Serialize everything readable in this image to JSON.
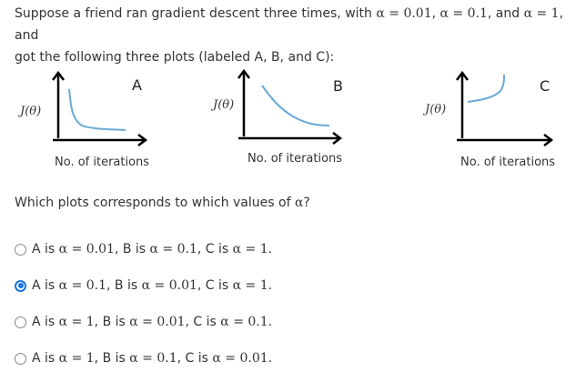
{
  "question": {
    "line1_pre": "Suppose a friend ran gradient descent three times, with ",
    "line1_a1": "α = 0.01",
    "line1_sep1": ", ",
    "line1_a2": "α = 0.1",
    "line1_sep2": ", and ",
    "line1_a3": "α = 1",
    "line1_post": ", and",
    "line2": "got the following three plots (labeled A, B, and C):"
  },
  "plots": [
    {
      "letter": "A",
      "ylabel": "J(θ)",
      "xlabel": "No. of iterations",
      "curve": "fast-decrease"
    },
    {
      "letter": "B",
      "ylabel": "J(θ)",
      "xlabel": "No. of iterations",
      "curve": "slow-decrease"
    },
    {
      "letter": "C",
      "ylabel": "J(θ)",
      "xlabel": "No. of iterations",
      "curve": "diverge"
    }
  ],
  "prompt": {
    "pre": "Which plots corresponds to which values of ",
    "alpha": "α",
    "post": "?"
  },
  "options": [
    {
      "p1": "A is ",
      "v1": "α = 0.01",
      "p2": ", B is ",
      "v2": "α = 0.1",
      "p3": ", C is ",
      "v3": "α = 1",
      "p4": ".",
      "selected": false
    },
    {
      "p1": "A is ",
      "v1": "α = 0.1",
      "p2": ", B is ",
      "v2": "α = 0.01",
      "p3": ", C is ",
      "v3": "α = 1",
      "p4": ".",
      "selected": true
    },
    {
      "p1": "A is ",
      "v1": "α = 1",
      "p2": ", B is ",
      "v2": "α = 0.01",
      "p3": ", C is ",
      "v3": "α = 0.1",
      "p4": ".",
      "selected": false
    },
    {
      "p1": "A is ",
      "v1": "α = 1",
      "p2": ", B is ",
      "v2": "α = 0.1",
      "p3": ", C is ",
      "v3": "α = 0.01",
      "p4": ".",
      "selected": false
    }
  ],
  "colors": {
    "curve": "#6aa9d6",
    "axis": "#000000",
    "radio_selected": "#1a73e8"
  }
}
